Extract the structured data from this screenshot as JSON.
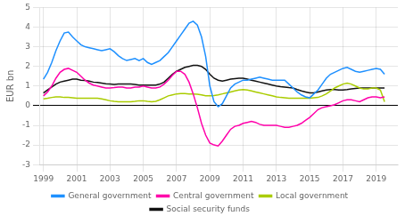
{
  "chart_data": {
    "type": "line",
    "y_label": "EUR bn",
    "x": [
      1999.0,
      1999.25,
      1999.5,
      1999.75,
      2000.0,
      2000.25,
      2000.5,
      2000.75,
      2001.0,
      2001.25,
      2001.5,
      2001.75,
      2002.0,
      2002.25,
      2002.5,
      2002.75,
      2003.0,
      2003.25,
      2003.5,
      2003.75,
      2004.0,
      2004.25,
      2004.5,
      2004.75,
      2005.0,
      2005.25,
      2005.5,
      2005.75,
      2006.0,
      2006.25,
      2006.5,
      2006.75,
      2007.0,
      2007.25,
      2007.5,
      2007.75,
      2008.0,
      2008.25,
      2008.5,
      2008.75,
      2009.0,
      2009.25,
      2009.5,
      2009.75,
      2010.0,
      2010.25,
      2010.5,
      2010.75,
      2011.0,
      2011.25,
      2011.5,
      2011.75,
      2012.0,
      2012.25,
      2012.5,
      2012.75,
      2013.0,
      2013.25,
      2013.5,
      2013.75,
      2014.0,
      2014.25,
      2014.5,
      2014.75,
      2015.0,
      2015.25,
      2015.5,
      2015.75,
      2016.0,
      2016.25,
      2016.5,
      2016.75,
      2017.0,
      2017.25,
      2017.5,
      2017.75,
      2018.0,
      2018.25,
      2018.5,
      2018.75,
      2019.0,
      2019.25,
      2019.5
    ],
    "series": [
      {
        "name": "General government",
        "color": "#1e90ff",
        "values": [
          1.35,
          1.7,
          2.2,
          2.8,
          3.3,
          3.7,
          3.75,
          3.5,
          3.3,
          3.1,
          3.0,
          2.95,
          2.9,
          2.85,
          2.8,
          2.85,
          2.9,
          2.75,
          2.55,
          2.4,
          2.3,
          2.35,
          2.4,
          2.3,
          2.4,
          2.2,
          2.1,
          2.2,
          2.3,
          2.5,
          2.7,
          3.0,
          3.3,
          3.6,
          3.9,
          4.2,
          4.3,
          4.1,
          3.5,
          2.5,
          1.0,
          0.2,
          -0.05,
          0.1,
          0.5,
          0.9,
          1.1,
          1.2,
          1.3,
          1.3,
          1.35,
          1.4,
          1.45,
          1.4,
          1.35,
          1.3,
          1.3,
          1.3,
          1.3,
          1.1,
          0.9,
          0.7,
          0.55,
          0.45,
          0.4,
          0.6,
          0.8,
          1.1,
          1.4,
          1.6,
          1.7,
          1.8,
          1.9,
          1.95,
          1.85,
          1.75,
          1.7,
          1.75,
          1.8,
          1.85,
          1.9,
          1.85,
          1.6
        ]
      },
      {
        "name": "Central government",
        "color": "#ff00aa",
        "values": [
          0.5,
          0.7,
          1.0,
          1.4,
          1.7,
          1.85,
          1.9,
          1.8,
          1.7,
          1.5,
          1.3,
          1.15,
          1.05,
          1.0,
          0.95,
          0.9,
          0.9,
          0.92,
          0.95,
          0.95,
          0.9,
          0.9,
          0.95,
          0.95,
          1.0,
          0.95,
          0.9,
          0.9,
          0.95,
          1.1,
          1.3,
          1.55,
          1.75,
          1.75,
          1.6,
          1.2,
          0.6,
          -0.1,
          -0.9,
          -1.5,
          -1.9,
          -2.0,
          -2.05,
          -1.8,
          -1.5,
          -1.2,
          -1.05,
          -1.0,
          -0.9,
          -0.85,
          -0.8,
          -0.85,
          -0.95,
          -1.0,
          -1.0,
          -1.0,
          -1.0,
          -1.05,
          -1.1,
          -1.1,
          -1.05,
          -1.0,
          -0.9,
          -0.75,
          -0.6,
          -0.4,
          -0.2,
          -0.1,
          -0.05,
          0.0,
          0.05,
          0.15,
          0.25,
          0.3,
          0.3,
          0.25,
          0.2,
          0.3,
          0.4,
          0.45,
          0.45,
          0.4,
          0.45
        ]
      },
      {
        "name": "Local government",
        "color": "#aacc00",
        "values": [
          0.35,
          0.38,
          0.42,
          0.45,
          0.45,
          0.42,
          0.42,
          0.4,
          0.38,
          0.38,
          0.38,
          0.38,
          0.38,
          0.38,
          0.35,
          0.3,
          0.25,
          0.22,
          0.2,
          0.2,
          0.2,
          0.2,
          0.22,
          0.25,
          0.25,
          0.22,
          0.2,
          0.22,
          0.3,
          0.4,
          0.5,
          0.55,
          0.6,
          0.62,
          0.62,
          0.6,
          0.6,
          0.58,
          0.55,
          0.5,
          0.5,
          0.52,
          0.55,
          0.6,
          0.65,
          0.7,
          0.75,
          0.8,
          0.82,
          0.8,
          0.75,
          0.7,
          0.65,
          0.6,
          0.55,
          0.5,
          0.45,
          0.42,
          0.4,
          0.38,
          0.38,
          0.38,
          0.38,
          0.38,
          0.38,
          0.4,
          0.42,
          0.5,
          0.6,
          0.75,
          0.9,
          1.0,
          1.1,
          1.15,
          1.1,
          1.0,
          0.9,
          0.85,
          0.85,
          0.9,
          0.9,
          0.8,
          0.2
        ]
      },
      {
        "name": "Social security funds",
        "color": "#111111",
        "values": [
          0.65,
          0.8,
          0.95,
          1.1,
          1.2,
          1.25,
          1.3,
          1.35,
          1.35,
          1.3,
          1.28,
          1.25,
          1.2,
          1.18,
          1.15,
          1.12,
          1.1,
          1.08,
          1.1,
          1.1,
          1.1,
          1.1,
          1.08,
          1.05,
          1.05,
          1.05,
          1.05,
          1.05,
          1.1,
          1.2,
          1.4,
          1.6,
          1.75,
          1.85,
          1.95,
          2.0,
          2.05,
          2.05,
          2.0,
          1.85,
          1.6,
          1.4,
          1.3,
          1.25,
          1.3,
          1.35,
          1.38,
          1.4,
          1.4,
          1.35,
          1.3,
          1.25,
          1.2,
          1.15,
          1.1,
          1.05,
          1.0,
          0.97,
          0.95,
          0.92,
          0.9,
          0.82,
          0.75,
          0.7,
          0.65,
          0.65,
          0.7,
          0.75,
          0.8,
          0.82,
          0.82,
          0.8,
          0.8,
          0.82,
          0.85,
          0.88,
          0.9,
          0.9,
          0.9,
          0.9,
          0.9,
          0.9,
          0.9
        ]
      }
    ],
    "xlim": [
      1998.8,
      2020.3
    ],
    "xticks": [
      1999,
      2001,
      2003,
      2005,
      2007,
      2009,
      2011,
      2013,
      2015,
      2017,
      2019
    ],
    "ylim": [
      -3,
      5
    ],
    "yticks": [
      -3,
      -2,
      -1,
      0,
      1,
      2,
      3,
      4,
      5
    ],
    "grid": true,
    "legend": "bottom"
  }
}
